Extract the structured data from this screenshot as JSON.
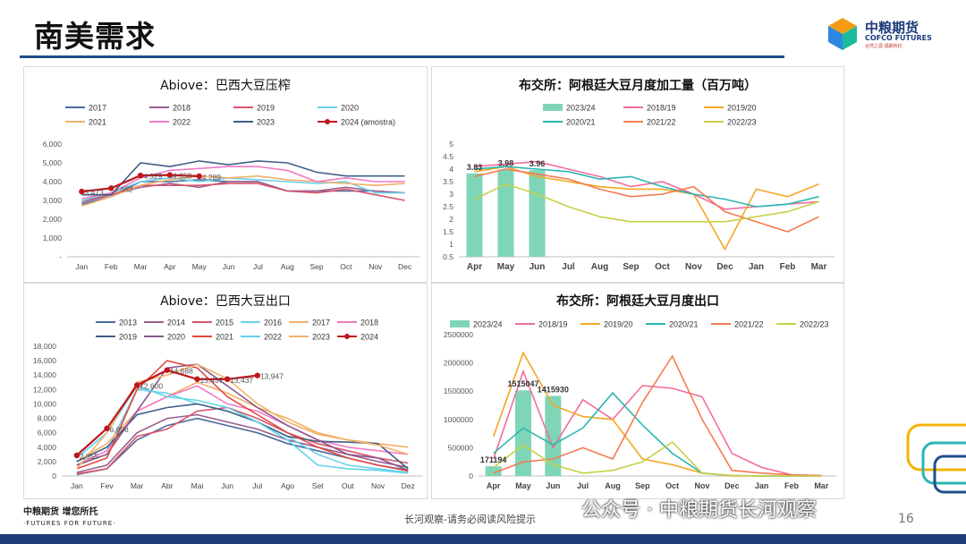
{
  "page": {
    "title": "南美需求",
    "logo_cn": "中粮期货",
    "logo_en": "COFCO FUTURES",
    "logo_slogan": "合然之源 福期所托",
    "footer_left_cn": "中粮期货 增您所托",
    "footer_left_en": "·FUTURES FOR FUTURE·",
    "footer_mid": "长河观察-请务必阅读风险提示",
    "wechat": "公众号 · 中粮期货长河观察",
    "page_number": "16",
    "watermark": "长河观察"
  },
  "chart_data": [
    {
      "type": "line",
      "title": "Abiove：巴西大豆压榨",
      "categories": [
        "Jan",
        "Feb",
        "Mar",
        "Apr",
        "May",
        "Jun",
        "Jul",
        "Aug",
        "Sep",
        "Oct",
        "Nov",
        "Dec"
      ],
      "ylim": [
        0,
        6000
      ],
      "yticks": [
        "-",
        "1,000",
        "2,000",
        "3,000",
        "4,000",
        "5,000",
        "6,000"
      ],
      "series": [
        {
          "name": "2017",
          "color": "#4a6b9c",
          "values": [
            2800,
            3200,
            4000,
            4000,
            4100,
            4000,
            4000,
            3500,
            3500,
            3500,
            3500,
            3400
          ]
        },
        {
          "name": "2018",
          "color": "#9b5f8f",
          "values": [
            2900,
            3300,
            3700,
            3900,
            3700,
            4000,
            4000,
            3500,
            3500,
            3700,
            3500,
            3400
          ]
        },
        {
          "name": "2019",
          "color": "#d9546b",
          "values": [
            3000,
            3300,
            3800,
            3800,
            3800,
            3900,
            3900,
            3500,
            3400,
            3600,
            3300,
            3000
          ]
        },
        {
          "name": "2020",
          "color": "#6cd0ea",
          "values": [
            3000,
            3400,
            4000,
            4200,
            4000,
            4200,
            4100,
            4000,
            3900,
            4000,
            3400,
            3400
          ]
        },
        {
          "name": "2021",
          "color": "#f2b06a",
          "values": [
            2700,
            3200,
            3800,
            4100,
            4300,
            4200,
            4300,
            4100,
            4000,
            3900,
            3800,
            3900
          ]
        },
        {
          "name": "2022",
          "color": "#f27ac6",
          "values": [
            3100,
            3400,
            4200,
            4600,
            4700,
            4800,
            4800,
            4600,
            4000,
            4200,
            4000,
            4000
          ]
        },
        {
          "name": "2023",
          "color": "#3e5f86",
          "values": [
            3300,
            3300,
            5000,
            4800,
            5100,
            4900,
            5100,
            5000,
            4500,
            4300,
            4300,
            4300
          ]
        },
        {
          "name": "2024 (amostra)",
          "color": "#c0161d",
          "marker": true,
          "values": [
            3473,
            3652,
            4329,
            4353,
            4289,
            null,
            null,
            null,
            null,
            null,
            null,
            null
          ]
        }
      ],
      "data_labels": [
        {
          "i": 0,
          "v": 3473,
          "text": "3,473"
        },
        {
          "i": 1,
          "v": 3652,
          "text": "3,652"
        },
        {
          "i": 2,
          "v": 4329,
          "text": "4,329"
        },
        {
          "i": 3,
          "v": 4353,
          "text": "4,353"
        },
        {
          "i": 4,
          "v": 4289,
          "text": "4,289"
        }
      ]
    },
    {
      "type": "bar+line",
      "title": "布交所：阿根廷大豆月度加工量（百万吨）",
      "categories": [
        "Apr",
        "May",
        "Jun",
        "Jul",
        "Aug",
        "Sep",
        "Oct",
        "Nov",
        "Dec",
        "Jan",
        "Feb",
        "Mar"
      ],
      "ylim": [
        0.5,
        5
      ],
      "yticks": [
        "0.5",
        "1",
        "1.5",
        "2",
        "2.5",
        "3",
        "3.5",
        "4",
        "4.5",
        "5"
      ],
      "bar_series": {
        "name": "2023/24",
        "color": "#7fd6b6",
        "values": [
          3.83,
          3.98,
          3.96
        ]
      },
      "bar_labels": [
        "3.83",
        "3.98",
        "3.96"
      ],
      "series": [
        {
          "name": "2018/19",
          "color": "#f26d9a",
          "values": [
            4.1,
            4.2,
            4.3,
            4.0,
            3.7,
            3.3,
            3.5,
            3.0,
            2.4,
            2.5,
            2.6,
            2.7
          ]
        },
        {
          "name": "2019/20",
          "color": "#f5a623",
          "values": [
            3.9,
            4.1,
            3.7,
            3.5,
            3.3,
            3.2,
            3.2,
            3.0,
            0.8,
            3.2,
            2.9,
            3.4
          ]
        },
        {
          "name": "2020/21",
          "color": "#2bb6b3",
          "values": [
            4.0,
            4.1,
            4.0,
            3.9,
            3.6,
            3.7,
            3.3,
            3.0,
            2.8,
            2.5,
            2.6,
            2.9
          ]
        },
        {
          "name": "2021/22",
          "color": "#f47b53",
          "values": [
            3.7,
            4.0,
            3.8,
            3.6,
            3.2,
            2.9,
            3.0,
            3.3,
            2.3,
            1.9,
            1.5,
            2.1
          ]
        },
        {
          "name": "2022/23",
          "color": "#c8d04a",
          "values": [
            2.8,
            3.4,
            3.0,
            2.5,
            2.1,
            1.9,
            1.9,
            1.9,
            1.9,
            2.1,
            2.3,
            2.7
          ]
        }
      ]
    },
    {
      "type": "line",
      "title": "Abiove：巴西大豆出口",
      "categories": [
        "Jan",
        "Fev",
        "Mar",
        "Abr",
        "Mai",
        "Jun",
        "Jul",
        "Ago",
        "Set",
        "Out",
        "Nov",
        "Dez"
      ],
      "ylim": [
        0,
        18000
      ],
      "yticks": [
        "0",
        "2,000",
        "4,000",
        "6,000",
        "8,000",
        "10,000",
        "12,000",
        "14,000",
        "16,000",
        "18,000"
      ],
      "series": [
        {
          "name": "2013",
          "color": "#4a6b9c",
          "values": [
            200,
            1000,
            5000,
            7000,
            8000,
            7000,
            6000,
            4500,
            3500,
            2500,
            1500,
            800
          ]
        },
        {
          "name": "2014",
          "color": "#9b5f8f",
          "values": [
            500,
            1500,
            6000,
            8000,
            8500,
            7500,
            6500,
            5000,
            4000,
            3000,
            2000,
            1200
          ]
        },
        {
          "name": "2015",
          "color": "#d9546b",
          "values": [
            300,
            1000,
            5500,
            6500,
            9000,
            9500,
            8000,
            6000,
            4500,
            3500,
            2500,
            1800
          ]
        },
        {
          "name": "2016",
          "color": "#6cd0ea",
          "values": [
            1500,
            3500,
            12000,
            11500,
            10000,
            9000,
            7500,
            5500,
            3000,
            1500,
            1000,
            500
          ]
        },
        {
          "name": "2017",
          "color": "#f2b06a",
          "values": [
            2000,
            4500,
            9000,
            11000,
            13000,
            11500,
            9500,
            8000,
            6000,
            5000,
            4500,
            4000
          ]
        },
        {
          "name": "2018",
          "color": "#f27ac6",
          "values": [
            1500,
            3500,
            9000,
            11000,
            12500,
            10000,
            9000,
            7000,
            5000,
            4000,
            3500,
            3000
          ]
        },
        {
          "name": "2019",
          "color": "#3e5f86",
          "values": [
            2000,
            4000,
            8500,
            9500,
            10000,
            9000,
            7500,
            5500,
            4800,
            4700,
            4500,
            1000
          ]
        },
        {
          "name": "2020",
          "color": "#8a5a8f",
          "values": [
            1500,
            3000,
            9000,
            15000,
            15500,
            12500,
            9500,
            7000,
            5000,
            3000,
            2500,
            800
          ]
        },
        {
          "name": "2021",
          "color": "#e2473f",
          "values": [
            1000,
            2500,
            12000,
            16000,
            15000,
            11000,
            8500,
            6000,
            4000,
            2500,
            1500,
            700
          ]
        },
        {
          "name": "2022",
          "color": "#5fd4e8",
          "values": [
            2500,
            6000,
            12500,
            11000,
            10500,
            9500,
            7500,
            5000,
            1500,
            1000,
            800,
            400
          ]
        },
        {
          "name": "2023",
          "color": "#f3b26b",
          "values": [
            1000,
            6000,
            13000,
            14000,
            15500,
            13500,
            10000,
            7500,
            5800,
            5000,
            4300,
            3000
          ]
        },
        {
          "name": "2024",
          "color": "#c0161d",
          "marker": true,
          "values": [
            2855,
            6608,
            12600,
            14688,
            13437,
            13437,
            13947,
            null,
            null,
            null,
            null,
            null
          ]
        }
      ],
      "data_labels": [
        {
          "i": 0,
          "v": 2855,
          "text": "2,855"
        },
        {
          "i": 1,
          "v": 6608,
          "text": "6,608"
        },
        {
          "i": 2,
          "v": 12600,
          "text": "12,600"
        },
        {
          "i": 3,
          "v": 14688,
          "text": "14,688"
        },
        {
          "i": 4,
          "v": 13437,
          "text": "13,437"
        },
        {
          "i": 5,
          "v": 13437,
          "text": "13,437"
        },
        {
          "i": 6,
          "v": 13947,
          "text": "13,947"
        }
      ]
    },
    {
      "type": "bar+line",
      "title": "布交所：阿根廷大豆月度出口",
      "categories": [
        "Apr",
        "May",
        "Jun",
        "Jul",
        "Aug",
        "Sep",
        "Oct",
        "Nov",
        "Dec",
        "Jan",
        "Feb",
        "Mar"
      ],
      "ylim": [
        0,
        2500000
      ],
      "yticks": [
        "0",
        "500000",
        "1000000",
        "1500000",
        "2000000",
        "2500000"
      ],
      "bar_series": {
        "name": "2023/24",
        "color": "#7fd6b6",
        "values": [
          171194,
          1515047,
          1415930
        ]
      },
      "bar_labels": [
        "171194",
        "1515047",
        "1415930"
      ],
      "series": [
        {
          "name": "2018/19",
          "color": "#f26d9a",
          "values": [
            300000,
            1850000,
            500000,
            1350000,
            1000000,
            1600000,
            1550000,
            1400000,
            400000,
            150000,
            20000,
            10000
          ]
        },
        {
          "name": "2019/20",
          "color": "#f5a623",
          "values": [
            700000,
            2180000,
            1250000,
            1050000,
            1000000,
            300000,
            200000,
            50000,
            0,
            0,
            0,
            0
          ]
        },
        {
          "name": "2020/21",
          "color": "#2bb6b3",
          "values": [
            400000,
            850000,
            550000,
            850000,
            1470000,
            900000,
            400000,
            50000,
            10000,
            0,
            0,
            0
          ]
        },
        {
          "name": "2021/22",
          "color": "#f47b53",
          "values": [
            50000,
            250000,
            300000,
            500000,
            300000,
            1300000,
            2120000,
            1000000,
            100000,
            50000,
            20000,
            5000
          ]
        },
        {
          "name": "2022/23",
          "color": "#c8d04a",
          "values": [
            150000,
            550000,
            200000,
            50000,
            100000,
            250000,
            600000,
            50000,
            10000,
            0,
            0,
            0
          ]
        }
      ]
    }
  ]
}
